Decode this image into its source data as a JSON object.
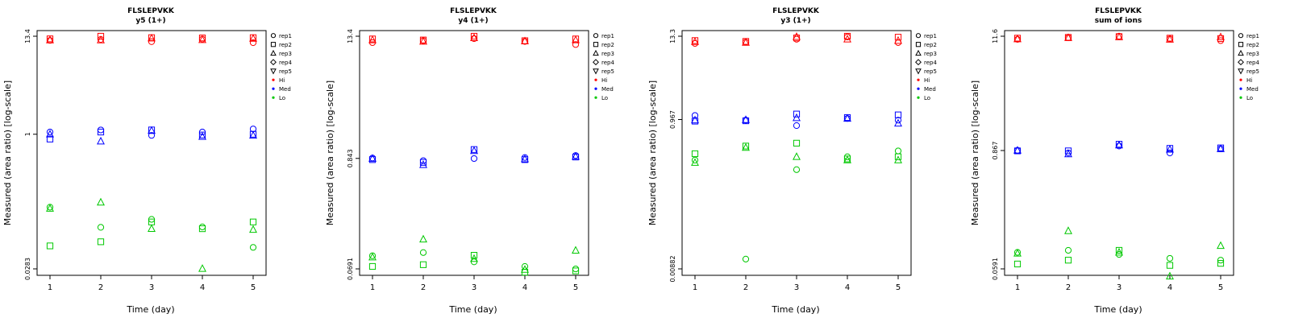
{
  "page": {
    "background": "#FFFFFF"
  },
  "legend": {
    "entries": [
      {
        "label": "rep1",
        "symbol": "circle",
        "color": "#000000"
      },
      {
        "label": "rep2",
        "symbol": "square",
        "color": "#000000"
      },
      {
        "label": "rep3",
        "symbol": "triangle",
        "color": "#000000"
      },
      {
        "label": "rep4",
        "symbol": "diamond",
        "color": "#000000"
      },
      {
        "label": "rep5",
        "symbol": "triangle-down",
        "color": "#000000"
      },
      {
        "label": "Hi",
        "symbol": "dot",
        "color": "#FF0000"
      },
      {
        "label": "Med",
        "symbol": "dot",
        "color": "#0000FF"
      },
      {
        "label": "Lo",
        "symbol": "dot",
        "color": "#00C800"
      }
    ]
  },
  "chart_data": [
    {
      "type": "scatter",
      "title": "FLSLEPVKK",
      "subtitle": "y5 (1+)",
      "xlabel": "Time (day)",
      "ylabel": "Measured (area ratio) [log-scale]",
      "x_scale": "linear",
      "y_scale": "log",
      "x_ticks": [
        1,
        2,
        3,
        4,
        5
      ],
      "y_ticks": [
        {
          "label": "13.4",
          "value": 13.4
        },
        {
          "label": "1",
          "value": 1
        },
        {
          "label": "0.0283",
          "value": 0.0283
        }
      ],
      "point_format": [
        "day",
        "rep",
        "value"
      ],
      "series": [
        {
          "name": "Hi",
          "color": "#FF0000",
          "points": [
            [
              1,
              1,
              12.0
            ],
            [
              1,
              2,
              12.5
            ],
            [
              1,
              3,
              12.1
            ],
            [
              2,
              1,
              12.3
            ],
            [
              2,
              2,
              13.4
            ],
            [
              2,
              3,
              12.1
            ],
            [
              3,
              1,
              11.6
            ],
            [
              3,
              2,
              12.9
            ],
            [
              3,
              3,
              12.7
            ],
            [
              4,
              1,
              12.4
            ],
            [
              4,
              2,
              12.8
            ],
            [
              4,
              3,
              12.2
            ],
            [
              5,
              1,
              11.3
            ],
            [
              5,
              2,
              12.9
            ],
            [
              5,
              3,
              12.6
            ]
          ]
        },
        {
          "name": "Med",
          "color": "#0000FF",
          "points": [
            [
              1,
              1,
              1.06
            ],
            [
              1,
              2,
              0.88
            ],
            [
              1,
              3,
              1.0
            ],
            [
              2,
              1,
              1.12
            ],
            [
              2,
              2,
              1.06
            ],
            [
              2,
              3,
              0.83
            ],
            [
              3,
              1,
              0.97
            ],
            [
              3,
              2,
              1.12
            ],
            [
              3,
              3,
              1.1
            ],
            [
              4,
              1,
              1.06
            ],
            [
              4,
              2,
              0.98
            ],
            [
              4,
              3,
              0.94
            ],
            [
              5,
              1,
              1.15
            ],
            [
              5,
              2,
              1.0
            ],
            [
              5,
              3,
              0.97
            ]
          ]
        },
        {
          "name": "Lo",
          "color": "#00C800",
          "points": [
            [
              1,
              1,
              0.145
            ],
            [
              1,
              2,
              0.052
            ],
            [
              1,
              3,
              0.14
            ],
            [
              2,
              1,
              0.085
            ],
            [
              2,
              2,
              0.058
            ],
            [
              2,
              3,
              0.165
            ],
            [
              3,
              1,
              0.105
            ],
            [
              3,
              2,
              0.098
            ],
            [
              3,
              3,
              0.082
            ],
            [
              4,
              1,
              0.086
            ],
            [
              4,
              2,
              0.082
            ],
            [
              4,
              3,
              0.0285
            ],
            [
              5,
              1,
              0.05
            ],
            [
              5,
              2,
              0.098
            ],
            [
              5,
              3,
              0.08
            ]
          ]
        }
      ]
    },
    {
      "type": "scatter",
      "title": "FLSLEPVKK",
      "subtitle": "y4 (1+)",
      "xlabel": "Time (day)",
      "ylabel": "Measured (area ratio) [log-scale]",
      "x_scale": "linear",
      "y_scale": "log",
      "x_ticks": [
        1,
        2,
        3,
        4,
        5
      ],
      "y_ticks": [
        {
          "label": "13.4",
          "value": 13.4
        },
        {
          "label": "0.843",
          "value": 0.843
        },
        {
          "label": "0.0691",
          "value": 0.0691
        }
      ],
      "point_format": [
        "day",
        "rep",
        "value"
      ],
      "series": [
        {
          "name": "Hi",
          "color": "#FF0000",
          "points": [
            [
              1,
              1,
              11.6
            ],
            [
              1,
              2,
              12.6
            ],
            [
              1,
              3,
              12.3
            ],
            [
              2,
              1,
              12.1
            ],
            [
              2,
              2,
              12.3
            ],
            [
              2,
              3,
              11.9
            ],
            [
              3,
              1,
              12.7
            ],
            [
              3,
              2,
              13.4
            ],
            [
              3,
              3,
              12.9
            ],
            [
              4,
              1,
              11.9
            ],
            [
              4,
              2,
              12.1
            ],
            [
              4,
              3,
              12.0
            ],
            [
              5,
              1,
              11.1
            ],
            [
              5,
              2,
              12.6
            ],
            [
              5,
              3,
              12.3
            ]
          ]
        },
        {
          "name": "Med",
          "color": "#0000FF",
          "points": [
            [
              1,
              1,
              0.85
            ],
            [
              1,
              2,
              0.82
            ],
            [
              1,
              3,
              0.84
            ],
            [
              2,
              1,
              0.8
            ],
            [
              2,
              2,
              0.77
            ],
            [
              2,
              3,
              0.73
            ],
            [
              3,
              1,
              0.84
            ],
            [
              3,
              2,
              1.03
            ],
            [
              3,
              3,
              1.0
            ],
            [
              4,
              1,
              0.86
            ],
            [
              4,
              2,
              0.82
            ],
            [
              4,
              3,
              0.83
            ],
            [
              5,
              1,
              0.9
            ],
            [
              5,
              2,
              0.87
            ],
            [
              5,
              3,
              0.88
            ]
          ]
        },
        {
          "name": "Lo",
          "color": "#00C800",
          "points": [
            [
              1,
              1,
              0.093
            ],
            [
              1,
              2,
              0.073
            ],
            [
              1,
              3,
              0.09
            ],
            [
              2,
              1,
              0.1
            ],
            [
              2,
              2,
              0.076
            ],
            [
              2,
              3,
              0.135
            ],
            [
              3,
              1,
              0.081
            ],
            [
              3,
              2,
              0.094
            ],
            [
              3,
              3,
              0.087
            ],
            [
              4,
              1,
              0.073
            ],
            [
              4,
              2,
              0.064
            ],
            [
              4,
              3,
              0.068
            ],
            [
              5,
              1,
              0.069
            ],
            [
              5,
              2,
              0.066
            ],
            [
              5,
              3,
              0.105
            ]
          ]
        }
      ]
    },
    {
      "type": "scatter",
      "title": "FLSLEPVKK",
      "subtitle": "y3 (1+)",
      "xlabel": "Time (day)",
      "ylabel": "Measured (area ratio) [log-scale]",
      "x_scale": "linear",
      "y_scale": "log",
      "x_ticks": [
        1,
        2,
        3,
        4,
        5
      ],
      "y_ticks": [
        {
          "label": "13.3",
          "value": 13.3
        },
        {
          "label": "0.967",
          "value": 0.967
        },
        {
          "label": "0.00882",
          "value": 0.00882
        }
      ],
      "point_format": [
        "day",
        "rep",
        "value"
      ],
      "series": [
        {
          "name": "Hi",
          "color": "#FF0000",
          "points": [
            [
              1,
              1,
              10.6
            ],
            [
              1,
              2,
              11.6
            ],
            [
              1,
              3,
              11.2
            ],
            [
              2,
              1,
              11.0
            ],
            [
              2,
              2,
              11.3
            ],
            [
              2,
              3,
              10.9
            ],
            [
              3,
              1,
              12.1
            ],
            [
              3,
              2,
              12.6
            ],
            [
              3,
              3,
              13.1
            ],
            [
              4,
              1,
              13.0
            ],
            [
              4,
              2,
              13.3
            ],
            [
              4,
              3,
              12.1
            ],
            [
              5,
              1,
              10.9
            ],
            [
              5,
              2,
              12.9
            ],
            [
              5,
              3,
              11.6
            ]
          ]
        },
        {
          "name": "Med",
          "color": "#0000FF",
          "points": [
            [
              1,
              1,
              1.1
            ],
            [
              1,
              2,
              0.92
            ],
            [
              1,
              3,
              0.95
            ],
            [
              2,
              1,
              0.95
            ],
            [
              2,
              2,
              0.93
            ],
            [
              2,
              3,
              0.96
            ],
            [
              3,
              1,
              0.8
            ],
            [
              3,
              2,
              1.15
            ],
            [
              3,
              3,
              1.02
            ],
            [
              4,
              1,
              1.0
            ],
            [
              4,
              2,
              1.03
            ],
            [
              4,
              3,
              1.0
            ],
            [
              5,
              1,
              0.95
            ],
            [
              5,
              2,
              1.12
            ],
            [
              5,
              3,
              0.86
            ]
          ]
        },
        {
          "name": "Lo",
          "color": "#00C800",
          "points": [
            [
              1,
              1,
              0.27
            ],
            [
              1,
              2,
              0.33
            ],
            [
              1,
              3,
              0.25
            ],
            [
              2,
              1,
              0.012
            ],
            [
              2,
              2,
              0.42
            ],
            [
              2,
              3,
              0.4
            ],
            [
              3,
              1,
              0.2
            ],
            [
              3,
              2,
              0.46
            ],
            [
              3,
              3,
              0.3
            ],
            [
              4,
              1,
              0.3
            ],
            [
              4,
              2,
              0.28
            ],
            [
              4,
              3,
              0.27
            ],
            [
              5,
              1,
              0.36
            ],
            [
              5,
              2,
              0.3
            ],
            [
              5,
              3,
              0.27
            ]
          ]
        }
      ]
    },
    {
      "type": "scatter",
      "title": "FLSLEPVKK",
      "subtitle": "sum of ions",
      "xlabel": "Time (day)",
      "ylabel": "Measured (area ratio) [log-scale]",
      "x_scale": "linear",
      "y_scale": "log",
      "x_ticks": [
        1,
        2,
        3,
        4,
        5
      ],
      "y_ticks": [
        {
          "label": "11.6",
          "value": 11.6
        },
        {
          "label": "0.867",
          "value": 0.867
        },
        {
          "label": "0.0591",
          "value": 0.0591
        }
      ],
      "point_format": [
        "day",
        "rep",
        "value"
      ],
      "series": [
        {
          "name": "Hi",
          "color": "#FF0000",
          "points": [
            [
              1,
              1,
              10.8
            ],
            [
              1,
              2,
              11.1
            ],
            [
              1,
              3,
              10.9
            ],
            [
              2,
              1,
              11.2
            ],
            [
              2,
              2,
              11.3
            ],
            [
              2,
              3,
              11.2
            ],
            [
              3,
              1,
              11.6
            ],
            [
              3,
              2,
              11.5
            ],
            [
              3,
              3,
              11.4
            ],
            [
              4,
              1,
              10.9
            ],
            [
              4,
              2,
              11.1
            ],
            [
              4,
              3,
              10.8
            ],
            [
              5,
              1,
              10.5
            ],
            [
              5,
              2,
              11.0
            ],
            [
              5,
              3,
              11.4
            ]
          ]
        },
        {
          "name": "Med",
          "color": "#0000FF",
          "points": [
            [
              1,
              1,
              0.87
            ],
            [
              1,
              2,
              0.86
            ],
            [
              1,
              3,
              0.87
            ],
            [
              2,
              1,
              0.82
            ],
            [
              2,
              2,
              0.86
            ],
            [
              2,
              3,
              0.8
            ],
            [
              3,
              1,
              0.96
            ],
            [
              3,
              2,
              1.0
            ],
            [
              3,
              3,
              0.98
            ],
            [
              4,
              1,
              0.82
            ],
            [
              4,
              2,
              0.91
            ],
            [
              4,
              3,
              0.89
            ],
            [
              5,
              1,
              0.9
            ],
            [
              5,
              2,
              0.92
            ],
            [
              5,
              3,
              0.9
            ]
          ]
        },
        {
          "name": "Lo",
          "color": "#00C800",
          "points": [
            [
              1,
              1,
              0.086
            ],
            [
              1,
              2,
              0.066
            ],
            [
              1,
              3,
              0.084
            ],
            [
              2,
              1,
              0.09
            ],
            [
              2,
              2,
              0.072
            ],
            [
              2,
              3,
              0.14
            ],
            [
              3,
              1,
              0.082
            ],
            [
              3,
              2,
              0.09
            ],
            [
              3,
              3,
              0.086
            ],
            [
              4,
              1,
              0.075
            ],
            [
              4,
              2,
              0.064
            ],
            [
              4,
              3,
              0.05
            ],
            [
              5,
              1,
              0.072
            ],
            [
              5,
              2,
              0.067
            ],
            [
              5,
              3,
              0.1
            ]
          ]
        }
      ]
    }
  ]
}
